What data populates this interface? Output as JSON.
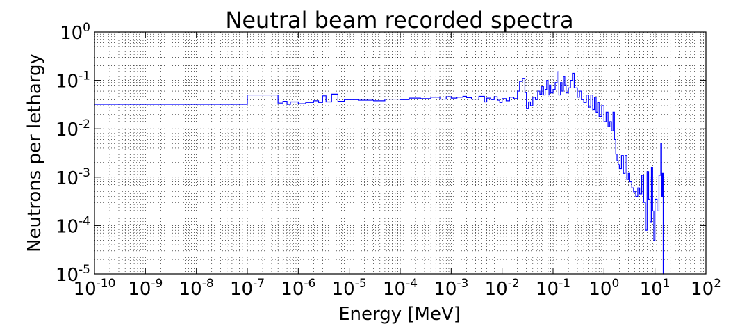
{
  "chart_data": {
    "type": "line",
    "title": "Neutral beam recorded spectra",
    "xlabel": "Energy [MeV]",
    "ylabel": "Neutrons per lethargy",
    "x_scale": "log",
    "y_scale": "log",
    "xlim": [
      1e-10,
      100
    ],
    "ylim": [
      1e-05,
      1
    ],
    "grid": true,
    "line_color": "#0000ff",
    "x_ticks": [
      {
        "base": "10",
        "exp": "-10",
        "value": 1e-10
      },
      {
        "base": "10",
        "exp": "-9",
        "value": 1e-09
      },
      {
        "base": "10",
        "exp": "-8",
        "value": 1e-08
      },
      {
        "base": "10",
        "exp": "-7",
        "value": 1e-07
      },
      {
        "base": "10",
        "exp": "-6",
        "value": 1e-06
      },
      {
        "base": "10",
        "exp": "-5",
        "value": 1e-05
      },
      {
        "base": "10",
        "exp": "-4",
        "value": 0.0001
      },
      {
        "base": "10",
        "exp": "-3",
        "value": 0.001
      },
      {
        "base": "10",
        "exp": "-2",
        "value": 0.01
      },
      {
        "base": "10",
        "exp": "-1",
        "value": 0.1
      },
      {
        "base": "10",
        "exp": "0",
        "value": 1
      },
      {
        "base": "10",
        "exp": "1",
        "value": 10
      },
      {
        "base": "10",
        "exp": "2",
        "value": 100
      }
    ],
    "y_ticks": [
      {
        "base": "10",
        "exp": "0",
        "value": 1
      },
      {
        "base": "10",
        "exp": "-1",
        "value": 0.1
      },
      {
        "base": "10",
        "exp": "-2",
        "value": 0.01
      },
      {
        "base": "10",
        "exp": "-3",
        "value": 0.001
      },
      {
        "base": "10",
        "exp": "-4",
        "value": 0.0001
      },
      {
        "base": "10",
        "exp": "-5",
        "value": 1e-05
      }
    ],
    "series": [
      {
        "step": [
          [
            1e-10,
            0.032
          ],
          [
            1e-07,
            0.05
          ],
          [
            4e-07,
            0.034
          ],
          [
            5e-07,
            0.037
          ],
          [
            6e-07,
            0.032
          ],
          [
            7e-07,
            0.036
          ],
          [
            1e-06,
            0.033
          ],
          [
            1.4e-06,
            0.035
          ],
          [
            2e-06,
            0.038
          ],
          [
            2.5e-06,
            0.035
          ],
          [
            3e-06,
            0.048
          ],
          [
            3.5e-06,
            0.036
          ],
          [
            4.5e-06,
            0.052
          ],
          [
            6e-06,
            0.037
          ],
          [
            8e-06,
            0.04
          ],
          [
            1.5e-05,
            0.039
          ],
          [
            3e-05,
            0.038
          ],
          [
            5e-05,
            0.041
          ],
          [
            0.0001,
            0.04
          ],
          [
            0.00015,
            0.043
          ],
          [
            0.00025,
            0.042
          ],
          [
            0.0004,
            0.045
          ],
          [
            0.0006,
            0.041
          ],
          [
            0.0008,
            0.046
          ],
          [
            0.001,
            0.043
          ],
          [
            0.0013,
            0.045
          ],
          [
            0.0017,
            0.047
          ],
          [
            0.002,
            0.044
          ],
          [
            0.0025,
            0.041
          ],
          [
            0.0035,
            0.047
          ],
          [
            0.0045,
            0.036
          ],
          [
            0.005,
            0.043
          ],
          [
            0.006,
            0.04
          ],
          [
            0.007,
            0.046
          ],
          [
            0.008,
            0.039
          ],
          [
            0.009,
            0.035
          ],
          [
            0.01,
            0.042
          ],
          [
            0.012,
            0.038
          ],
          [
            0.014,
            0.045
          ],
          [
            0.017,
            0.042
          ],
          [
            0.02,
            0.06
          ],
          [
            0.022,
            0.095
          ],
          [
            0.025,
            0.11
          ],
          [
            0.028,
            0.056
          ],
          [
            0.03,
            0.026
          ],
          [
            0.033,
            0.036
          ],
          [
            0.036,
            0.03
          ],
          [
            0.04,
            0.045
          ],
          [
            0.045,
            0.04
          ],
          [
            0.05,
            0.06
          ],
          [
            0.055,
            0.052
          ],
          [
            0.06,
            0.075
          ],
          [
            0.065,
            0.05
          ],
          [
            0.07,
            0.065
          ],
          [
            0.075,
            0.1
          ],
          [
            0.08,
            0.05
          ],
          [
            0.085,
            0.08
          ],
          [
            0.09,
            0.055
          ],
          [
            0.1,
            0.065
          ],
          [
            0.11,
            0.09
          ],
          [
            0.12,
            0.15
          ],
          [
            0.13,
            0.05
          ],
          [
            0.14,
            0.09
          ],
          [
            0.15,
            0.06
          ],
          [
            0.16,
            0.12
          ],
          [
            0.17,
            0.08
          ],
          [
            0.18,
            0.055
          ],
          [
            0.2,
            0.07
          ],
          [
            0.22,
            0.1
          ],
          [
            0.24,
            0.14
          ],
          [
            0.26,
            0.07
          ],
          [
            0.3,
            0.045
          ],
          [
            0.33,
            0.06
          ],
          [
            0.36,
            0.04
          ],
          [
            0.4,
            0.035
          ],
          [
            0.45,
            0.05
          ],
          [
            0.5,
            0.028
          ],
          [
            0.55,
            0.05
          ],
          [
            0.6,
            0.025
          ],
          [
            0.65,
            0.045
          ],
          [
            0.7,
            0.022
          ],
          [
            0.75,
            0.035
          ],
          [
            0.8,
            0.018
          ],
          [
            0.9,
            0.03
          ],
          [
            1.0,
            0.014
          ],
          [
            1.1,
            0.022
          ],
          [
            1.2,
            0.011
          ],
          [
            1.3,
            0.014
          ],
          [
            1.4,
            0.009
          ],
          [
            1.5,
            0.022
          ],
          [
            1.6,
            0.006
          ],
          [
            1.7,
            0.003
          ],
          [
            1.8,
            0.0022
          ],
          [
            1.9,
            0.0018
          ],
          [
            2.0,
            0.0015
          ],
          [
            2.2,
            0.0028
          ],
          [
            2.4,
            0.0012
          ],
          [
            2.6,
            0.0028
          ],
          [
            2.8,
            0.0009
          ],
          [
            3.0,
            0.0012
          ],
          [
            3.2,
            0.0008
          ],
          [
            3.5,
            0.0006
          ],
          [
            3.8,
            0.0005
          ],
          [
            4.2,
            0.0004
          ],
          [
            4.6,
            0.0006
          ],
          [
            5.0,
            0.00045
          ],
          [
            5.5,
            0.0011
          ],
          [
            6.0,
            0.0003
          ],
          [
            6.5,
            8e-05
          ],
          [
            7.0,
            0.0013
          ],
          [
            7.5,
            0.00035
          ],
          [
            8.0,
            0.00012
          ],
          [
            8.5,
            0.0016
          ],
          [
            9.0,
            0.0002
          ],
          [
            9.5,
            5e-05
          ],
          [
            10.0,
            0.00035
          ],
          [
            11.0,
            0.0002
          ],
          [
            12.0,
            0.0011
          ],
          [
            13.0,
            0.005
          ],
          [
            13.5,
            0.0004
          ],
          [
            14.0,
            0.0012
          ],
          [
            14.5,
            1e-06
          ],
          [
            15.0,
            1e-06
          ]
        ]
      }
    ]
  }
}
